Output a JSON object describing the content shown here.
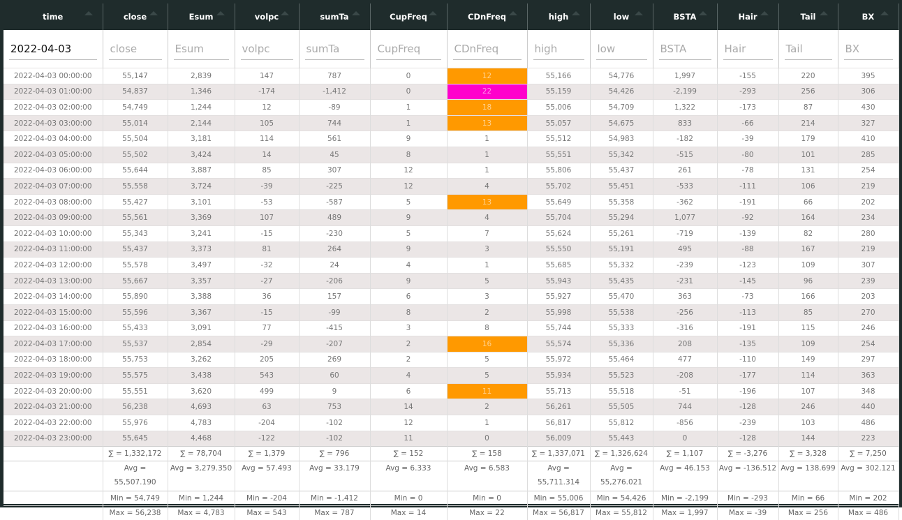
{
  "table": {
    "columns": [
      "time",
      "close",
      "Esum",
      "volpc",
      "sumTa",
      "CupFreq",
      "CDnFreq",
      "high",
      "low",
      "BSTA",
      "Hair",
      "Tail",
      "BX"
    ],
    "filter_value": "2022-04-03",
    "rows": [
      [
        "2022-04-03 00:00:00",
        "55,147",
        "2,839",
        "147",
        "787",
        "0",
        "12",
        "55,166",
        "54,776",
        "1,997",
        "-155",
        "220",
        "395"
      ],
      [
        "2022-04-03 01:00:00",
        "54,837",
        "1,346",
        "-174",
        "-1,412",
        "0",
        "22",
        "55,159",
        "54,426",
        "-2,199",
        "-293",
        "256",
        "306"
      ],
      [
        "2022-04-03 02:00:00",
        "54,749",
        "1,244",
        "12",
        "-89",
        "1",
        "18",
        "55,006",
        "54,709",
        "1,322",
        "-173",
        "87",
        "430"
      ],
      [
        "2022-04-03 03:00:00",
        "55,014",
        "2,144",
        "105",
        "744",
        "1",
        "13",
        "55,057",
        "54,675",
        "833",
        "-66",
        "214",
        "327"
      ],
      [
        "2022-04-03 04:00:00",
        "55,504",
        "3,181",
        "114",
        "561",
        "9",
        "1",
        "55,512",
        "54,983",
        "-182",
        "-39",
        "179",
        "410"
      ],
      [
        "2022-04-03 05:00:00",
        "55,502",
        "3,424",
        "14",
        "45",
        "8",
        "1",
        "55,551",
        "55,342",
        "-515",
        "-80",
        "101",
        "285"
      ],
      [
        "2022-04-03 06:00:00",
        "55,644",
        "3,887",
        "85",
        "307",
        "12",
        "1",
        "55,806",
        "55,437",
        "261",
        "-78",
        "131",
        "254"
      ],
      [
        "2022-04-03 07:00:00",
        "55,558",
        "3,724",
        "-39",
        "-225",
        "12",
        "4",
        "55,702",
        "55,451",
        "-533",
        "-111",
        "106",
        "219"
      ],
      [
        "2022-04-03 08:00:00",
        "55,427",
        "3,101",
        "-53",
        "-587",
        "5",
        "13",
        "55,649",
        "55,358",
        "-362",
        "-191",
        "66",
        "202"
      ],
      [
        "2022-04-03 09:00:00",
        "55,561",
        "3,369",
        "107",
        "489",
        "9",
        "4",
        "55,704",
        "55,294",
        "1,077",
        "-92",
        "164",
        "234"
      ],
      [
        "2022-04-03 10:00:00",
        "55,343",
        "3,241",
        "-15",
        "-230",
        "5",
        "7",
        "55,624",
        "55,261",
        "-719",
        "-139",
        "82",
        "280"
      ],
      [
        "2022-04-03 11:00:00",
        "55,437",
        "3,373",
        "81",
        "264",
        "9",
        "3",
        "55,550",
        "55,191",
        "495",
        "-88",
        "167",
        "219"
      ],
      [
        "2022-04-03 12:00:00",
        "55,578",
        "3,497",
        "-32",
        "24",
        "4",
        "1",
        "55,685",
        "55,332",
        "-239",
        "-123",
        "109",
        "307"
      ],
      [
        "2022-04-03 13:00:00",
        "55,667",
        "3,357",
        "-27",
        "-206",
        "9",
        "5",
        "55,943",
        "55,435",
        "-231",
        "-145",
        "96",
        "239"
      ],
      [
        "2022-04-03 14:00:00",
        "55,890",
        "3,388",
        "36",
        "157",
        "6",
        "3",
        "55,927",
        "55,470",
        "363",
        "-73",
        "166",
        "203"
      ],
      [
        "2022-04-03 15:00:00",
        "55,596",
        "3,367",
        "-15",
        "-99",
        "8",
        "2",
        "55,998",
        "55,538",
        "-256",
        "-113",
        "85",
        "270"
      ],
      [
        "2022-04-03 16:00:00",
        "55,433",
        "3,091",
        "77",
        "-415",
        "3",
        "8",
        "55,744",
        "55,333",
        "-316",
        "-191",
        "115",
        "246"
      ],
      [
        "2022-04-03 17:00:00",
        "55,537",
        "2,854",
        "-29",
        "-207",
        "2",
        "16",
        "55,574",
        "55,336",
        "208",
        "-135",
        "109",
        "254"
      ],
      [
        "2022-04-03 18:00:00",
        "55,753",
        "3,262",
        "205",
        "269",
        "2",
        "5",
        "55,972",
        "55,464",
        "477",
        "-110",
        "149",
        "297"
      ],
      [
        "2022-04-03 19:00:00",
        "55,575",
        "3,438",
        "543",
        "60",
        "4",
        "5",
        "55,934",
        "55,523",
        "-208",
        "-177",
        "114",
        "363"
      ],
      [
        "2022-04-03 20:00:00",
        "55,551",
        "3,620",
        "499",
        "9",
        "6",
        "11",
        "55,713",
        "55,518",
        "-51",
        "-196",
        "107",
        "348"
      ],
      [
        "2022-04-03 21:00:00",
        "56,238",
        "4,693",
        "63",
        "753",
        "14",
        "2",
        "56,261",
        "55,505",
        "744",
        "-128",
        "246",
        "440"
      ],
      [
        "2022-04-03 22:00:00",
        "55,976",
        "4,783",
        "-204",
        "-102",
        "12",
        "1",
        "56,817",
        "55,812",
        "-856",
        "-239",
        "103",
        "486"
      ],
      [
        "2022-04-03 23:00:00",
        "55,645",
        "4,468",
        "-122",
        "-102",
        "11",
        "0",
        "56,009",
        "55,443",
        "0",
        "-128",
        "144",
        "223"
      ]
    ],
    "cdnfreq_colors": [
      "#ff9900",
      "#ff00cc",
      "#ff9900",
      "#ff9900",
      null,
      null,
      null,
      null,
      "#ff9900",
      null,
      null,
      null,
      null,
      null,
      null,
      null,
      null,
      "#ff9900",
      null,
      null,
      "#ff9900",
      null,
      null,
      null
    ],
    "footer": {
      "sum": [
        "∑ = 1,332,172",
        "∑ = 78,704",
        "∑ = 1,379",
        "∑ = 796",
        "∑ = 152",
        "∑ = 158",
        "∑ = 1,337,071",
        "∑ = 1,326,624",
        "∑ = 1,107",
        "∑ = -3,276",
        "∑ = 3,328",
        "∑ = 7,250"
      ],
      "avg": [
        "Avg = 55,507.190",
        "Avg = 3,279.350",
        "Avg = 57.493",
        "Avg = 33.179",
        "Avg = 6.333",
        "Avg = 6.583",
        "Avg = 55,711.314",
        "Avg = 55,276.021",
        "Avg = 46.153",
        "Avg = -136.512",
        "Avg = 138.699",
        "Avg = 302.121"
      ],
      "min": [
        "Min = 54,749",
        "Min = 1,244",
        "Min = -204",
        "Min = -1,412",
        "Min = 0",
        "Min = 0",
        "Min = 55,006",
        "Min = 54,426",
        "Min = -2,199",
        "Min = -293",
        "Min = 66",
        "Min = 202"
      ],
      "max": [
        "Max = 56,238",
        "Max = 4,783",
        "Max = 543",
        "Max = 787",
        "Max = 14",
        "Max = 22",
        "Max = 56,817",
        "Max = 55,812",
        "Max = 1,997",
        "Max = -39",
        "Max = 256",
        "Max = 486"
      ]
    }
  }
}
